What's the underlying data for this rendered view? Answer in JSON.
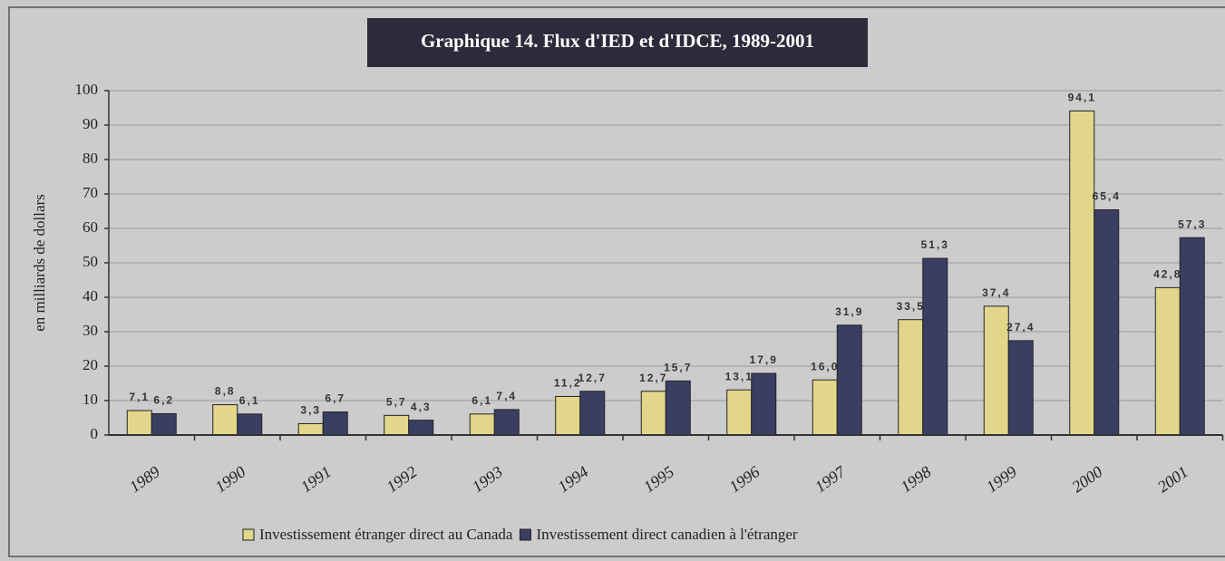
{
  "chart_data": {
    "type": "bar",
    "title": "Graphique 14. Flux d'IED et d'IDCE, 1989-2001",
    "y_label": "en milliards de dollars",
    "categories": [
      "1989",
      "1990",
      "1991",
      "1992",
      "1993",
      "1994",
      "1995",
      "1996",
      "1997",
      "1998",
      "1999",
      "2000",
      "2001"
    ],
    "series": [
      {
        "name": "Investissement étranger direct au Canada",
        "color": "#e2d68a",
        "values": [
          7.1,
          8.8,
          3.3,
          5.7,
          6.1,
          11.2,
          12.7,
          13.1,
          16.0,
          33.5,
          37.4,
          94.1,
          42.8
        ],
        "value_labels": [
          "7,1",
          "8,8",
          "3,3",
          "5,7",
          "6,1",
          "11,2",
          "12,7",
          "13,1",
          "16,0",
          "33,5",
          "37,4",
          "94,1",
          "42,8"
        ]
      },
      {
        "name": "Investissement direct canadien à l'étranger",
        "color": "#3b3e63",
        "values": [
          6.2,
          6.1,
          6.7,
          4.3,
          7.4,
          12.7,
          15.7,
          17.9,
          31.9,
          51.3,
          27.4,
          65.4,
          57.3
        ],
        "value_labels": [
          "6,2",
          "6,1",
          "6,7",
          "4,3",
          "7,4",
          "12,7",
          "15,7",
          "17,9",
          "31,9",
          "51,3",
          "27,4",
          "65,4",
          "57,3"
        ]
      }
    ],
    "ylim": [
      0,
      100
    ],
    "yticks": [
      0,
      10,
      20,
      30,
      40,
      50,
      60,
      70,
      80,
      90,
      100
    ],
    "grid": true,
    "legend": "bottom"
  }
}
